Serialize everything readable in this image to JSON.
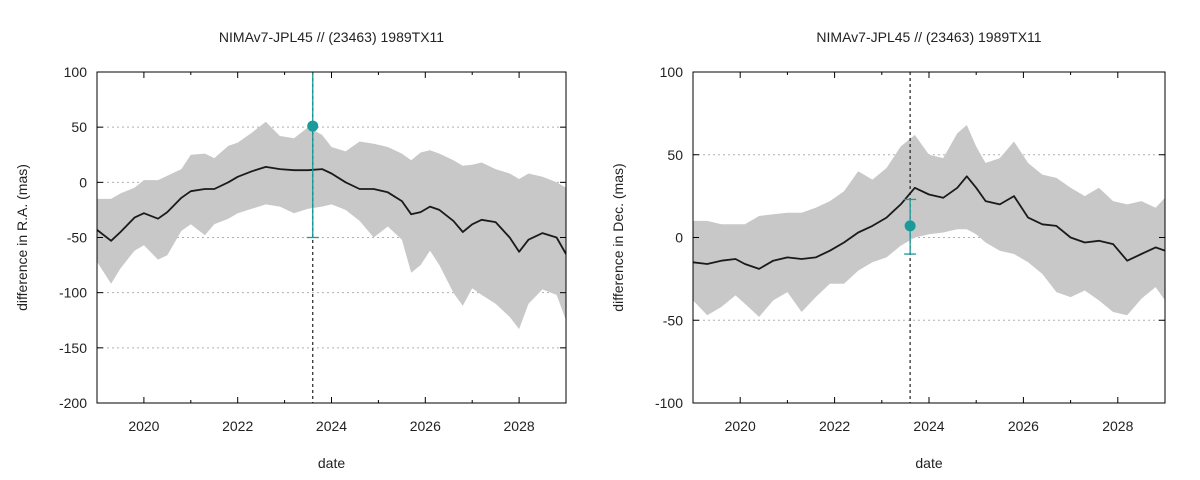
{
  "colors": {
    "band": "#c8c8c8",
    "line": "#1a1a1a",
    "point": "#1a9a9a",
    "grid": "#b0b0b0"
  },
  "chart_data": [
    {
      "type": "line",
      "title": "NIMAv7-JPL45 // (23463) 1989TX11",
      "xlabel": "date",
      "ylabel": "difference in R.A. (mas)",
      "xlim": [
        2019.0,
        2029.0
      ],
      "ylim": [
        -200,
        100
      ],
      "xticks": [
        2020,
        2022,
        2024,
        2026,
        2028
      ],
      "yticks": [
        -200,
        -150,
        -100,
        -50,
        0,
        50,
        100
      ],
      "grid": true,
      "vline_x": 2023.6,
      "series": [
        {
          "values": {
            "x": [
              2019.0,
              2019.3,
              2019.5,
              2019.8,
              2020.0,
              2020.3,
              2020.5,
              2020.8,
              2021.0,
              2021.3,
              2021.5,
              2021.8,
              2022.0,
              2022.3,
              2022.6,
              2022.9,
              2023.2,
              2023.5,
              2023.8,
              2024.0,
              2024.3,
              2024.6,
              2024.9,
              2025.2,
              2025.5,
              2025.7,
              2025.9,
              2026.1,
              2026.3,
              2026.6,
              2026.8,
              2027.0,
              2027.2,
              2027.5,
              2027.8,
              2028.0,
              2028.2,
              2028.5,
              2028.8,
              2029.0
            ],
            "y": [
              -43,
              -53,
              -45,
              -32,
              -28,
              -33,
              -27,
              -14,
              -8,
              -6,
              -6,
              0,
              5,
              10,
              14,
              12,
              11,
              11,
              12,
              8,
              0,
              -6,
              -6,
              -9,
              -17,
              -29,
              -27,
              -22,
              -25,
              -35,
              -45,
              -38,
              -34,
              -36,
              -50,
              -63,
              -52,
              -46,
              -50,
              -65
            ]
          },
          "band_upper": [
            -15,
            -15,
            -10,
            -5,
            2,
            2,
            6,
            12,
            25,
            26,
            22,
            33,
            36,
            45,
            55,
            42,
            40,
            50,
            43,
            32,
            28,
            37,
            35,
            32,
            26,
            20,
            27,
            29,
            26,
            20,
            15,
            16,
            18,
            12,
            8,
            3,
            8,
            5,
            0,
            -5
          ],
          "band_lower": [
            -72,
            -92,
            -78,
            -62,
            -57,
            -70,
            -66,
            -44,
            -38,
            -48,
            -38,
            -33,
            -28,
            -24,
            -20,
            -22,
            -28,
            -24,
            -22,
            -20,
            -25,
            -35,
            -50,
            -40,
            -52,
            -82,
            -75,
            -62,
            -75,
            -100,
            -112,
            -96,
            -102,
            -110,
            -122,
            -133,
            -110,
            -97,
            -102,
            -125
          ]
        }
      ],
      "points": [
        {
          "x": 2023.6,
          "y": 51,
          "err_low": -50,
          "err_high": 150
        }
      ]
    },
    {
      "type": "line",
      "title": "NIMAv7-JPL45 // (23463) 1989TX11",
      "xlabel": "date",
      "ylabel": "difference in Dec. (mas)",
      "xlim": [
        2019.0,
        2029.0
      ],
      "ylim": [
        -100,
        100
      ],
      "xticks": [
        2020,
        2022,
        2024,
        2026,
        2028
      ],
      "yticks": [
        -100,
        -50,
        0,
        50,
        100
      ],
      "grid": true,
      "vline_x": 2023.6,
      "series": [
        {
          "values": {
            "x": [
              2019.0,
              2019.3,
              2019.6,
              2019.9,
              2020.1,
              2020.4,
              2020.7,
              2021.0,
              2021.3,
              2021.6,
              2021.9,
              2022.2,
              2022.5,
              2022.8,
              2023.1,
              2023.4,
              2023.7,
              2024.0,
              2024.3,
              2024.6,
              2024.8,
              2025.0,
              2025.2,
              2025.5,
              2025.8,
              2026.1,
              2026.4,
              2026.7,
              2027.0,
              2027.3,
              2027.6,
              2027.9,
              2028.2,
              2028.5,
              2028.8,
              2029.0
            ],
            "y": [
              -15,
              -16,
              -14,
              -13,
              -16,
              -19,
              -14,
              -12,
              -13,
              -12,
              -8,
              -3,
              3,
              7,
              12,
              20,
              30,
              26,
              24,
              30,
              37,
              30,
              22,
              20,
              25,
              12,
              8,
              7,
              0,
              -3,
              -2,
              -4,
              -14,
              -10,
              -6,
              -8
            ]
          },
          "band_upper": [
            10,
            10,
            8,
            8,
            8,
            13,
            14,
            15,
            15,
            18,
            22,
            28,
            40,
            35,
            42,
            55,
            62,
            50,
            48,
            63,
            68,
            55,
            45,
            48,
            58,
            45,
            38,
            36,
            30,
            25,
            30,
            22,
            20,
            22,
            18,
            24
          ],
          "band_lower": [
            -38,
            -47,
            -42,
            -35,
            -40,
            -48,
            -38,
            -33,
            -45,
            -36,
            -28,
            -28,
            -20,
            -15,
            -12,
            -5,
            0,
            2,
            3,
            5,
            5,
            2,
            -3,
            -8,
            -10,
            -15,
            -22,
            -33,
            -36,
            -32,
            -38,
            -45,
            -47,
            -37,
            -30,
            -38
          ]
        }
      ],
      "points": [
        {
          "x": 2023.6,
          "y": 7,
          "err_low": -10,
          "err_high": 23
        }
      ]
    }
  ]
}
